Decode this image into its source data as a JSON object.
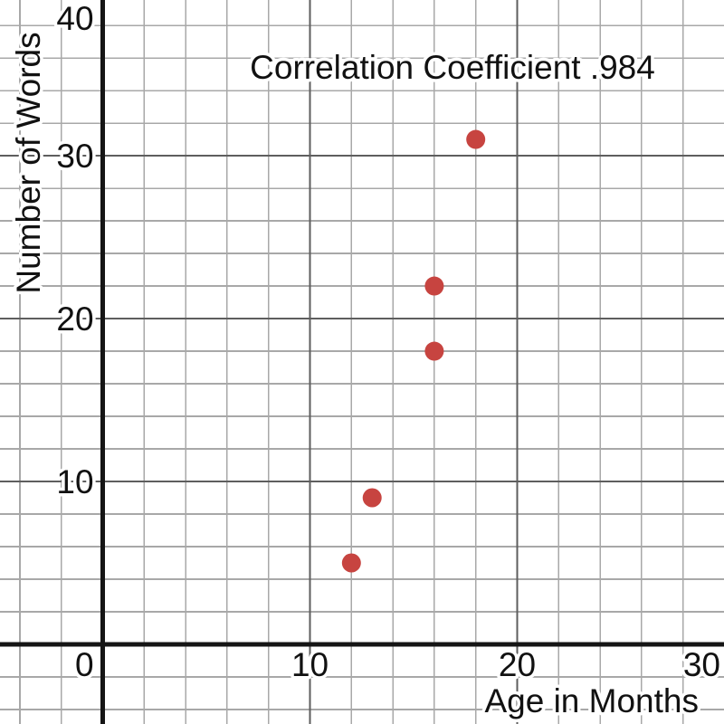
{
  "chart_data": {
    "type": "scatter",
    "title": "Correlation Coefficient .984",
    "xlabel": "Age in Months",
    "ylabel": "Number of Words",
    "points": [
      {
        "x": 12,
        "y": 5
      },
      {
        "x": 13,
        "y": 9
      },
      {
        "x": 16,
        "y": 18
      },
      {
        "x": 16,
        "y": 22
      },
      {
        "x": 18,
        "y": 31
      }
    ],
    "xlim": [
      -4.96,
      29.98
    ],
    "ylim": [
      -4.89,
      39.56
    ],
    "x_ticks": [
      0,
      10,
      20,
      30
    ],
    "y_ticks": [
      10,
      20,
      30,
      40
    ],
    "minor_step": 2,
    "major_step": 10,
    "grid": true,
    "legend": "none",
    "colors": {
      "background": "#ffffff",
      "point": "#c74440",
      "minor_grid": "#a8a8a8",
      "major_grid": "#5e5e5e",
      "axis": "#151515",
      "text": "#111111",
      "text_halo": "#ffffff"
    },
    "point_radius": 10.5
  }
}
